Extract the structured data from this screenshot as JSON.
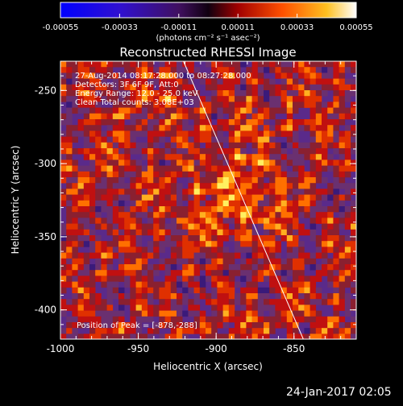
{
  "colorbar": {
    "ticks": [
      "-0.00055",
      "-0.00033",
      "-0.00011",
      "0.00011",
      "0.00033",
      "0.00055"
    ],
    "tick_values": [
      -0.00055,
      -0.00033,
      -0.00011,
      0.00011,
      0.00033,
      0.00055
    ],
    "units_label": "(photons cm⁻² s⁻¹ asec⁻²)",
    "colors": [
      "#0000ff",
      "#5010a0",
      "#200020",
      "#e03000",
      "#ff9000",
      "#ffffff"
    ]
  },
  "chart_data": {
    "type": "heatmap",
    "title": "Reconstructed RHESSI Image",
    "xlabel": "Heliocentric X (arcsec)",
    "ylabel": "Heliocentric Y (arcsec)",
    "xlim": [
      -1000,
      -810
    ],
    "ylim": [
      -420,
      -230
    ],
    "xticks": [
      -1000,
      -950,
      -900,
      -850
    ],
    "yticks": [
      -250,
      -300,
      -350,
      -400
    ],
    "xtick_labels": [
      "-1000",
      "-950",
      "-900",
      "-850"
    ],
    "ytick_labels": [
      "-250",
      "-300",
      "-350",
      "-400"
    ],
    "limb_line": [
      [
        -921,
        -230
      ],
      [
        -844,
        -420
      ]
    ],
    "annotations": [
      "27-Aug-2014 08:17:28.000 to 08:27:28.000",
      "Detectors: 3F 6F 9F, Att:0",
      "Energy Range: 12.0 - 25.0 keV",
      "Clean     Total counts: 3.08E+03"
    ],
    "peak_label": "Position of Peak = [-878,-288]"
  },
  "timestamp": "24-Jan-2017 02:05"
}
